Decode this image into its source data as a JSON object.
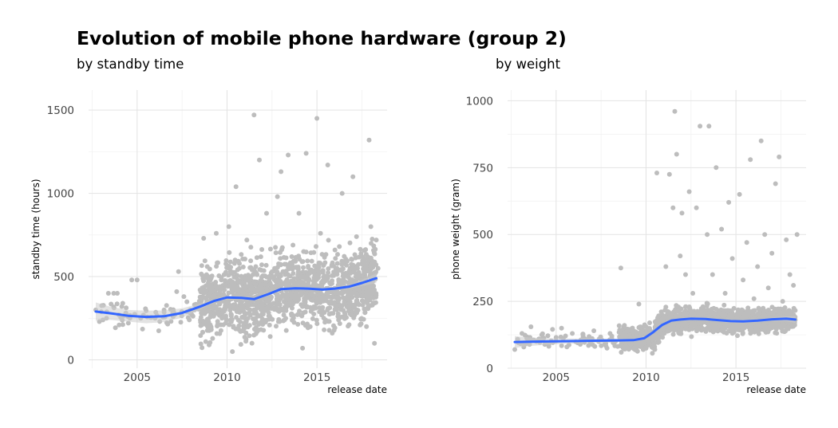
{
  "title": "Evolution of mobile phone hardware (group 2)",
  "chart_data": [
    {
      "type": "scatter",
      "subtitle": "by standby time",
      "xlabel": "release date",
      "ylabel": "standby time (hours)",
      "xlim": [
        2002.3,
        2018.9
      ],
      "ylim": [
        -50,
        1620
      ],
      "xticks": [
        2005,
        2010,
        2015
      ],
      "yticks": [
        0,
        500,
        1000,
        1500
      ],
      "grid": true,
      "point_color": "#bdbdbd",
      "smooth_color": "#3366ff",
      "band_color": "#cccccc",
      "sample_points": [
        [
          2002.7,
          300
        ],
        [
          2002.9,
          230
        ],
        [
          2003.1,
          240
        ],
        [
          2003.3,
          250
        ],
        [
          2003.4,
          400
        ],
        [
          2003.7,
          400
        ],
        [
          2003.9,
          400
        ],
        [
          2004.0,
          210
        ],
        [
          2004.2,
          340
        ],
        [
          2004.4,
          270
        ],
        [
          2004.7,
          480
        ],
        [
          2005.0,
          480
        ],
        [
          2005.2,
          250
        ],
        [
          2005.3,
          185
        ],
        [
          2005.5,
          295
        ],
        [
          2005.8,
          255
        ],
        [
          2006.0,
          250
        ],
        [
          2006.2,
          175
        ],
        [
          2006.5,
          300
        ],
        [
          2006.7,
          215
        ],
        [
          2007.0,
          260
        ],
        [
          2007.2,
          410
        ],
        [
          2007.3,
          530
        ],
        [
          2007.6,
          380
        ],
        [
          2007.9,
          240
        ],
        [
          2008.2,
          300
        ],
        [
          2008.5,
          420
        ],
        [
          2008.6,
          210
        ],
        [
          2008.7,
          730
        ],
        [
          2008.9,
          560
        ],
        [
          2009.0,
          90
        ],
        [
          2009.2,
          380
        ],
        [
          2009.4,
          760
        ],
        [
          2009.6,
          440
        ],
        [
          2009.8,
          260
        ],
        [
          2010.0,
          320
        ],
        [
          2010.1,
          800
        ],
        [
          2010.3,
          50
        ],
        [
          2010.5,
          1040
        ],
        [
          2010.7,
          470
        ],
        [
          2010.9,
          180
        ],
        [
          2011.1,
          720
        ],
        [
          2011.3,
          300
        ],
        [
          2011.5,
          1470
        ],
        [
          2011.6,
          560
        ],
        [
          2011.8,
          1200
        ],
        [
          2012.0,
          410
        ],
        [
          2012.2,
          880
        ],
        [
          2012.4,
          140
        ],
        [
          2012.6,
          500
        ],
        [
          2012.8,
          980
        ],
        [
          2013.0,
          1130
        ],
        [
          2013.2,
          240
        ],
        [
          2013.4,
          1230
        ],
        [
          2013.6,
          620
        ],
        [
          2013.8,
          360
        ],
        [
          2014.0,
          880
        ],
        [
          2014.2,
          70
        ],
        [
          2014.4,
          1240
        ],
        [
          2014.6,
          520
        ],
        [
          2014.8,
          310
        ],
        [
          2015.0,
          1450
        ],
        [
          2015.2,
          760
        ],
        [
          2015.4,
          180
        ],
        [
          2015.6,
          1170
        ],
        [
          2015.8,
          420
        ],
        [
          2016.0,
          660
        ],
        [
          2016.2,
          240
        ],
        [
          2016.4,
          1000
        ],
        [
          2016.6,
          520
        ],
        [
          2016.8,
          320
        ],
        [
          2017.0,
          1100
        ],
        [
          2017.2,
          740
        ],
        [
          2017.4,
          210
        ],
        [
          2017.6,
          580
        ],
        [
          2017.8,
          360
        ],
        [
          2017.9,
          1320
        ],
        [
          2018.0,
          800
        ],
        [
          2018.1,
          470
        ],
        [
          2018.2,
          100
        ],
        [
          2018.3,
          720
        ],
        [
          2018.4,
          550
        ]
      ],
      "smooth": [
        [
          2002.7,
          290
        ],
        [
          2003.5,
          280
        ],
        [
          2004.5,
          265
        ],
        [
          2005.5,
          258
        ],
        [
          2006.5,
          262
        ],
        [
          2007.5,
          282
        ],
        [
          2008.5,
          320
        ],
        [
          2009.3,
          355
        ],
        [
          2010.0,
          375
        ],
        [
          2010.8,
          372
        ],
        [
          2011.5,
          365
        ],
        [
          2012.3,
          395
        ],
        [
          2013.0,
          425
        ],
        [
          2013.8,
          430
        ],
        [
          2014.5,
          428
        ],
        [
          2015.3,
          423
        ],
        [
          2016.0,
          428
        ],
        [
          2016.8,
          440
        ],
        [
          2017.5,
          462
        ],
        [
          2018.3,
          490
        ]
      ],
      "band_halfwidth": [
        55,
        40,
        35,
        38,
        35,
        28,
        18,
        10,
        10,
        10,
        10,
        10,
        10,
        10,
        10,
        10,
        10,
        12,
        18,
        28
      ]
    },
    {
      "type": "scatter",
      "subtitle": "by weight",
      "xlabel": "release date",
      "ylabel": "phone weight (gram)",
      "xlim": [
        2002.3,
        2018.9
      ],
      "ylim": [
        0,
        1040
      ],
      "xticks": [
        2005,
        2010,
        2015
      ],
      "yticks": [
        0,
        250,
        500,
        750,
        1000
      ],
      "grid": true,
      "point_color": "#bdbdbd",
      "smooth_color": "#3366ff",
      "band_color": "#cccccc",
      "sample_points": [
        [
          2002.7,
          70
        ],
        [
          2002.9,
          95
        ],
        [
          2003.1,
          130
        ],
        [
          2003.4,
          110
        ],
        [
          2003.6,
          155
        ],
        [
          2003.9,
          100
        ],
        [
          2004.2,
          125
        ],
        [
          2004.5,
          90
        ],
        [
          2004.8,
          145
        ],
        [
          2005.0,
          115
        ],
        [
          2005.3,
          150
        ],
        [
          2005.6,
          80
        ],
        [
          2005.9,
          130
        ],
        [
          2006.2,
          95
        ],
        [
          2006.5,
          120
        ],
        [
          2006.8,
          85
        ],
        [
          2007.1,
          140
        ],
        [
          2007.4,
          110
        ],
        [
          2007.7,
          90
        ],
        [
          2008.0,
          130
        ],
        [
          2008.3,
          100
        ],
        [
          2008.6,
          375
        ],
        [
          2008.8,
          160
        ],
        [
          2009.0,
          75
        ],
        [
          2009.3,
          140
        ],
        [
          2009.6,
          240
        ],
        [
          2009.9,
          95
        ],
        [
          2010.2,
          170
        ],
        [
          2010.4,
          130
        ],
        [
          2010.6,
          730
        ],
        [
          2010.9,
          200
        ],
        [
          2011.1,
          380
        ],
        [
          2011.3,
          725
        ],
        [
          2011.5,
          600
        ],
        [
          2011.6,
          960
        ],
        [
          2011.7,
          800
        ],
        [
          2011.9,
          420
        ],
        [
          2012.0,
          580
        ],
        [
          2012.2,
          350
        ],
        [
          2012.4,
          660
        ],
        [
          2012.6,
          280
        ],
        [
          2012.8,
          600
        ],
        [
          2013.0,
          905
        ],
        [
          2013.2,
          220
        ],
        [
          2013.4,
          500
        ],
        [
          2013.5,
          905
        ],
        [
          2013.7,
          350
        ],
        [
          2013.9,
          750
        ],
        [
          2014.2,
          520
        ],
        [
          2014.4,
          280
        ],
        [
          2014.6,
          620
        ],
        [
          2014.8,
          410
        ],
        [
          2015.0,
          200
        ],
        [
          2015.2,
          650
        ],
        [
          2015.4,
          330
        ],
        [
          2015.6,
          470
        ],
        [
          2015.8,
          780
        ],
        [
          2016.0,
          260
        ],
        [
          2016.2,
          380
        ],
        [
          2016.4,
          850
        ],
        [
          2016.6,
          500
        ],
        [
          2016.8,
          300
        ],
        [
          2017.0,
          430
        ],
        [
          2017.2,
          690
        ],
        [
          2017.4,
          790
        ],
        [
          2017.6,
          250
        ],
        [
          2017.8,
          480
        ],
        [
          2018.0,
          350
        ],
        [
          2018.2,
          310
        ],
        [
          2018.4,
          500
        ]
      ],
      "smooth": [
        [
          2002.7,
          98
        ],
        [
          2003.5,
          99
        ],
        [
          2004.5,
          100
        ],
        [
          2005.5,
          101
        ],
        [
          2006.5,
          102
        ],
        [
          2007.5,
          103
        ],
        [
          2008.5,
          104
        ],
        [
          2009.3,
          105
        ],
        [
          2009.9,
          112
        ],
        [
          2010.4,
          135
        ],
        [
          2010.9,
          162
        ],
        [
          2011.4,
          178
        ],
        [
          2011.9,
          182
        ],
        [
          2012.5,
          185
        ],
        [
          2013.3,
          184
        ],
        [
          2014.0,
          180
        ],
        [
          2014.7,
          176
        ],
        [
          2015.4,
          175
        ],
        [
          2016.2,
          178
        ],
        [
          2017.0,
          183
        ],
        [
          2017.8,
          185
        ],
        [
          2018.3,
          182
        ]
      ],
      "band_halfwidth": [
        22,
        16,
        12,
        10,
        9,
        8,
        7,
        6,
        6,
        6,
        6,
        6,
        6,
        6,
        6,
        6,
        6,
        6,
        6,
        7,
        9,
        12
      ]
    }
  ]
}
